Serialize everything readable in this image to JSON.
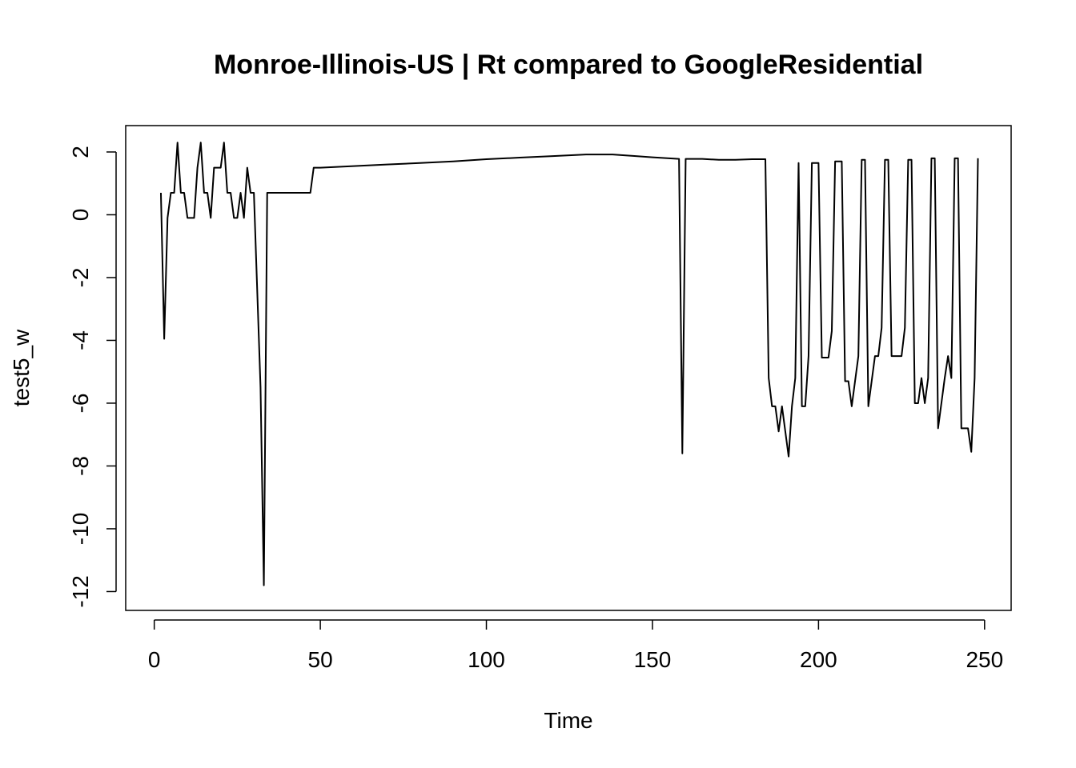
{
  "chart_data": {
    "type": "line",
    "title": "Monroe-Illinois-US | Rt compared to GoogleResidential",
    "xlabel": "Time",
    "ylabel": "test5_w",
    "xlim": [
      -8.6,
      258
    ],
    "ylim": [
      -12.6,
      2.84
    ],
    "x_ticks": [
      0,
      50,
      100,
      150,
      200,
      250
    ],
    "y_ticks": [
      2,
      0,
      -2,
      -4,
      -6,
      -8,
      -10,
      -12
    ],
    "x_tick_labels": [
      "0",
      "50",
      "100",
      "150",
      "200",
      "250"
    ],
    "y_tick_labels": [
      "2",
      "0",
      "-2",
      "-4",
      "-6",
      "-8",
      "-10",
      "-12"
    ],
    "grid": false,
    "legend": "none",
    "line_color": "#000000",
    "series": [
      {
        "points": [
          [
            2,
            0.7
          ],
          [
            3,
            -3.95
          ],
          [
            4,
            -0.1
          ],
          [
            5,
            0.7
          ],
          [
            6,
            0.7
          ],
          [
            7,
            2.3
          ],
          [
            8,
            0.7
          ],
          [
            9,
            0.7
          ],
          [
            10,
            -0.1
          ],
          [
            11,
            -0.1
          ],
          [
            12,
            -0.1
          ],
          [
            13,
            1.5
          ],
          [
            14,
            2.3
          ],
          [
            15,
            0.7
          ],
          [
            16,
            0.7
          ],
          [
            17,
            -0.1
          ],
          [
            18,
            1.5
          ],
          [
            19,
            1.5
          ],
          [
            20,
            1.5
          ],
          [
            21,
            2.3
          ],
          [
            22,
            0.7
          ],
          [
            23,
            0.7
          ],
          [
            24,
            -0.1
          ],
          [
            25,
            -0.1
          ],
          [
            26,
            0.7
          ],
          [
            27,
            -0.1
          ],
          [
            28,
            1.5
          ],
          [
            29,
            0.7
          ],
          [
            30,
            0.7
          ],
          [
            32,
            -5.5
          ],
          [
            33,
            -11.8
          ],
          [
            34,
            0.7
          ],
          [
            40,
            0.7
          ],
          [
            47,
            0.7
          ],
          [
            48,
            1.5
          ],
          [
            50,
            1.5
          ],
          [
            60,
            1.55
          ],
          [
            70,
            1.6
          ],
          [
            80,
            1.65
          ],
          [
            90,
            1.7
          ],
          [
            100,
            1.77
          ],
          [
            110,
            1.82
          ],
          [
            120,
            1.87
          ],
          [
            130,
            1.92
          ],
          [
            138,
            1.92
          ],
          [
            145,
            1.87
          ],
          [
            150,
            1.83
          ],
          [
            158,
            1.78
          ],
          [
            159,
            -7.6
          ],
          [
            160,
            1.78
          ],
          [
            165,
            1.78
          ],
          [
            170,
            1.75
          ],
          [
            175,
            1.75
          ],
          [
            180,
            1.77
          ],
          [
            184,
            1.77
          ],
          [
            185,
            -5.2
          ],
          [
            186,
            -6.1
          ],
          [
            187,
            -6.1
          ],
          [
            188,
            -6.9
          ],
          [
            189,
            -6.1
          ],
          [
            191,
            -7.7
          ],
          [
            192,
            -6.1
          ],
          [
            193,
            -5.2
          ],
          [
            194,
            1.65
          ],
          [
            195,
            -6.1
          ],
          [
            196,
            -6.1
          ],
          [
            197,
            -4.5
          ],
          [
            198,
            1.65
          ],
          [
            200,
            1.65
          ],
          [
            201,
            -4.55
          ],
          [
            203,
            -4.55
          ],
          [
            204,
            -3.7
          ],
          [
            205,
            1.7
          ],
          [
            207,
            1.7
          ],
          [
            208,
            -5.3
          ],
          [
            209,
            -5.3
          ],
          [
            210,
            -6.1
          ],
          [
            211,
            -5.3
          ],
          [
            212,
            -4.5
          ],
          [
            213,
            1.75
          ],
          [
            214,
            1.75
          ],
          [
            215,
            -6.1
          ],
          [
            216,
            -5.3
          ],
          [
            217,
            -4.5
          ],
          [
            218,
            -4.5
          ],
          [
            219,
            -3.6
          ],
          [
            220,
            1.75
          ],
          [
            221,
            1.75
          ],
          [
            222,
            -4.5
          ],
          [
            225,
            -4.5
          ],
          [
            226,
            -3.6
          ],
          [
            227,
            1.75
          ],
          [
            228,
            1.75
          ],
          [
            229,
            -6.0
          ],
          [
            230,
            -6.0
          ],
          [
            231,
            -5.2
          ],
          [
            232,
            -6.0
          ],
          [
            233,
            -5.2
          ],
          [
            234,
            1.8
          ],
          [
            235,
            1.8
          ],
          [
            236,
            -6.8
          ],
          [
            237,
            -6.0
          ],
          [
            238,
            -5.2
          ],
          [
            239,
            -4.5
          ],
          [
            240,
            -5.2
          ],
          [
            241,
            1.8
          ],
          [
            242,
            1.8
          ],
          [
            243,
            -6.8
          ],
          [
            245,
            -6.8
          ],
          [
            246,
            -7.55
          ],
          [
            247,
            -5.2
          ],
          [
            248,
            1.8
          ]
        ]
      }
    ]
  }
}
